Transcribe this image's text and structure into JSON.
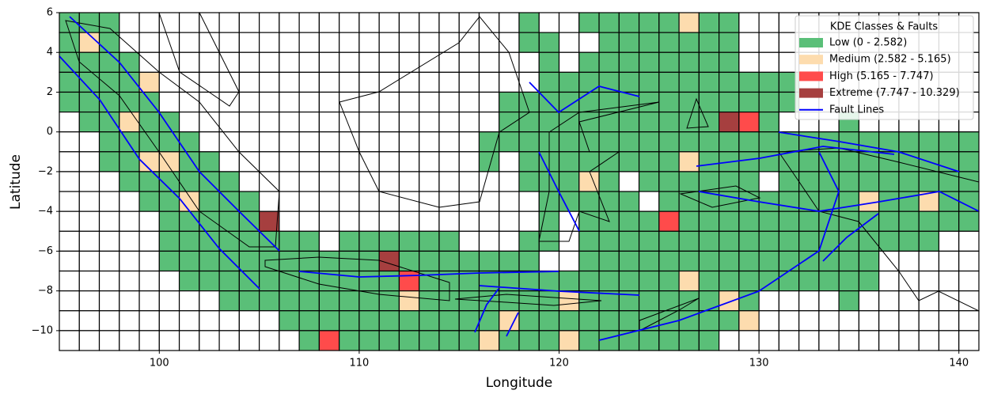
{
  "chart_data": {
    "type": "grid-map",
    "xlabel": "Longitude",
    "ylabel": "Latitude",
    "xlim": [
      95,
      141
    ],
    "ylim": [
      -11,
      6
    ],
    "xticks": [
      100,
      110,
      120,
      130,
      140
    ],
    "yticks": [
      6,
      4,
      2,
      {
        "value": 0,
        "label": "0"
      },
      {
        "value": -2,
        "label": "−2"
      },
      {
        "value": -4,
        "label": "−4"
      },
      {
        "value": -6,
        "label": "−6"
      },
      {
        "value": -8,
        "label": "−8"
      },
      {
        "value": -10,
        "label": "−10"
      }
    ],
    "legend_title": "KDE Classes & Faults",
    "legend_loc": "upper right",
    "classes": [
      {
        "name": "Low (0 - 2.582)",
        "color": "#5abf78"
      },
      {
        "name": "Medium (2.582 - 5.165)",
        "color": "#fddcae"
      },
      {
        "name": "High (5.165 - 7.747)",
        "color": "#ff4b4b"
      },
      {
        "name": "Extreme (7.747 - 10.329)",
        "color": "#a63f3f"
      }
    ],
    "faults": {
      "name": "Fault Lines",
      "color": "#0000ff"
    },
    "cell_classes": [
      [
        0,
        0,
        0,
        null,
        null,
        null,
        null,
        null,
        null,
        null,
        null,
        null,
        null,
        null,
        null,
        null,
        null,
        null,
        null,
        null,
        null,
        null,
        null,
        0,
        null,
        null,
        0,
        0,
        0,
        0,
        0,
        1,
        0,
        0,
        null,
        null,
        null,
        null,
        null,
        null,
        null,
        null,
        null,
        null,
        null,
        null
      ],
      [
        0,
        1,
        0,
        null,
        null,
        null,
        null,
        null,
        null,
        null,
        null,
        null,
        null,
        null,
        null,
        null,
        null,
        null,
        null,
        null,
        null,
        null,
        null,
        0,
        0,
        null,
        null,
        0,
        0,
        0,
        0,
        0,
        0,
        0,
        null,
        null,
        null,
        null,
        null,
        null,
        null,
        null,
        null,
        null,
        null,
        null
      ],
      [
        0,
        0,
        0,
        0,
        null,
        null,
        null,
        null,
        null,
        null,
        null,
        null,
        null,
        null,
        null,
        null,
        null,
        null,
        null,
        null,
        null,
        null,
        null,
        null,
        0,
        null,
        0,
        0,
        0,
        0,
        0,
        0,
        0,
        0,
        null,
        null,
        null,
        null,
        null,
        null,
        null,
        null,
        null,
        null,
        null,
        null
      ],
      [
        0,
        0,
        0,
        0,
        1,
        null,
        null,
        null,
        null,
        null,
        null,
        null,
        null,
        null,
        null,
        null,
        null,
        null,
        null,
        null,
        null,
        null,
        null,
        null,
        0,
        0,
        0,
        0,
        0,
        0,
        0,
        0,
        0,
        0,
        0,
        0,
        0,
        null,
        null,
        null,
        null,
        null,
        null,
        null,
        null,
        null
      ],
      [
        0,
        0,
        0,
        0,
        0,
        null,
        null,
        null,
        null,
        null,
        null,
        null,
        null,
        null,
        null,
        null,
        null,
        null,
        null,
        null,
        null,
        null,
        0,
        0,
        0,
        0,
        0,
        0,
        0,
        0,
        0,
        0,
        0,
        0,
        0,
        0,
        0,
        null,
        null,
        null,
        null,
        null,
        null,
        null,
        null,
        null
      ],
      [
        null,
        0,
        0,
        1,
        0,
        0,
        null,
        null,
        null,
        null,
        null,
        null,
        null,
        null,
        null,
        null,
        null,
        null,
        null,
        null,
        null,
        null,
        0,
        0,
        0,
        0,
        0,
        0,
        0,
        0,
        0,
        0,
        0,
        3,
        2,
        0,
        null,
        null,
        null,
        0,
        null,
        null,
        null,
        null,
        null,
        null
      ],
      [
        null,
        null,
        0,
        0,
        0,
        0,
        0,
        null,
        null,
        null,
        null,
        null,
        null,
        null,
        null,
        null,
        null,
        null,
        null,
        null,
        null,
        0,
        0,
        0,
        0,
        0,
        0,
        0,
        0,
        0,
        0,
        0,
        0,
        0,
        0,
        0,
        0,
        0,
        0,
        0,
        0,
        0,
        0,
        0,
        0,
        0
      ],
      [
        null,
        null,
        0,
        0,
        1,
        1,
        0,
        0,
        null,
        null,
        null,
        null,
        null,
        null,
        null,
        null,
        null,
        null,
        null,
        null,
        null,
        0,
        null,
        0,
        0,
        0,
        0,
        0,
        0,
        0,
        0,
        1,
        0,
        0,
        0,
        0,
        0,
        0,
        0,
        0,
        0,
        0,
        0,
        0,
        0,
        0
      ],
      [
        null,
        null,
        null,
        0,
        0,
        0,
        0,
        0,
        0,
        null,
        null,
        null,
        null,
        null,
        null,
        null,
        null,
        null,
        null,
        null,
        null,
        null,
        null,
        0,
        0,
        0,
        1,
        0,
        null,
        0,
        0,
        0,
        0,
        0,
        0,
        null,
        0,
        0,
        0,
        0,
        0,
        0,
        0,
        0,
        0,
        0
      ],
      [
        null,
        null,
        null,
        null,
        0,
        0,
        1,
        0,
        0,
        0,
        null,
        null,
        null,
        null,
        null,
        null,
        null,
        null,
        null,
        null,
        null,
        null,
        null,
        null,
        0,
        0,
        0,
        0,
        0,
        null,
        0,
        0,
        0,
        0,
        0,
        0,
        0,
        0,
        0,
        0,
        1,
        0,
        0,
        1,
        0,
        0
      ],
      [
        null,
        null,
        null,
        null,
        null,
        0,
        0,
        0,
        0,
        0,
        3,
        null,
        null,
        null,
        null,
        null,
        null,
        null,
        null,
        null,
        null,
        null,
        null,
        null,
        0,
        null,
        0,
        0,
        0,
        0,
        2,
        0,
        0,
        0,
        0,
        0,
        0,
        0,
        0,
        0,
        0,
        0,
        0,
        0,
        0,
        0
      ],
      [
        null,
        null,
        null,
        null,
        null,
        0,
        0,
        0,
        0,
        0,
        0,
        0,
        0,
        null,
        0,
        0,
        0,
        0,
        0,
        0,
        null,
        null,
        null,
        0,
        0,
        null,
        0,
        0,
        0,
        0,
        0,
        0,
        0,
        0,
        0,
        0,
        0,
        0,
        0,
        0,
        0,
        0,
        0,
        0,
        null,
        null
      ],
      [
        null,
        null,
        null,
        null,
        null,
        0,
        0,
        0,
        0,
        0,
        0,
        0,
        0,
        0,
        0,
        0,
        3,
        0,
        0,
        0,
        0,
        0,
        0,
        0,
        null,
        null,
        0,
        0,
        0,
        0,
        0,
        0,
        0,
        0,
        0,
        0,
        0,
        0,
        0,
        0,
        0,
        null,
        null,
        null,
        null,
        null
      ],
      [
        null,
        null,
        null,
        null,
        null,
        null,
        0,
        0,
        0,
        0,
        0,
        0,
        0,
        0,
        0,
        0,
        0,
        2,
        0,
        0,
        0,
        0,
        0,
        0,
        0,
        0,
        0,
        0,
        0,
        0,
        0,
        1,
        0,
        0,
        0,
        0,
        0,
        0,
        0,
        0,
        0,
        null,
        null,
        null,
        null,
        null
      ],
      [
        null,
        null,
        null,
        null,
        null,
        null,
        null,
        null,
        0,
        0,
        0,
        0,
        0,
        0,
        0,
        0,
        0,
        1,
        0,
        0,
        0,
        0,
        0,
        0,
        0,
        1,
        0,
        0,
        0,
        0,
        0,
        0,
        0,
        1,
        0,
        null,
        null,
        null,
        null,
        0,
        null,
        null,
        null,
        null,
        null,
        null
      ],
      [
        null,
        null,
        null,
        null,
        null,
        null,
        null,
        null,
        null,
        null,
        null,
        0,
        0,
        0,
        0,
        0,
        0,
        0,
        0,
        0,
        0,
        0,
        1,
        0,
        0,
        0,
        0,
        0,
        0,
        0,
        0,
        0,
        0,
        0,
        1,
        null,
        null,
        null,
        null,
        null,
        null,
        null,
        null,
        null,
        null,
        null
      ],
      [
        null,
        null,
        null,
        null,
        null,
        null,
        null,
        null,
        null,
        null,
        null,
        null,
        0,
        2,
        0,
        0,
        0,
        0,
        0,
        0,
        0,
        1,
        0,
        0,
        0,
        1,
        0,
        0,
        0,
        0,
        0,
        0,
        0,
        null,
        null,
        null,
        null,
        null,
        null,
        null,
        null,
        null,
        null,
        null,
        null,
        null
      ]
    ]
  }
}
